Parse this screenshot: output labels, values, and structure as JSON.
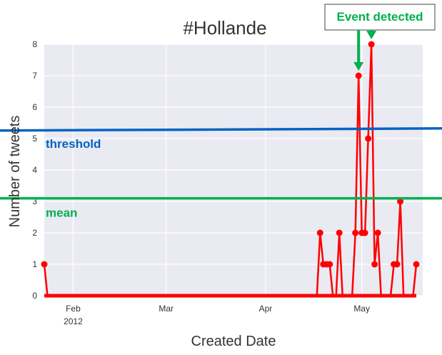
{
  "chart_data": {
    "type": "line",
    "title": "#Hollande",
    "xlabel": "Created Date",
    "ylabel": "Number of tweets",
    "ylim": [
      0,
      8
    ],
    "xlim": [
      "2012-01-23",
      "2012-05-20"
    ],
    "grid": true,
    "yticks": [
      0,
      1,
      2,
      3,
      4,
      5,
      6,
      7,
      8
    ],
    "xticks": [
      {
        "date": "2012-02-01",
        "label": "Feb",
        "sublabel": "2012"
      },
      {
        "date": "2012-03-01",
        "label": "Mar",
        "sublabel": ""
      },
      {
        "date": "2012-04-01",
        "label": "Apr",
        "sublabel": ""
      },
      {
        "date": "2012-05-01",
        "label": "May",
        "sublabel": ""
      }
    ],
    "series": [
      {
        "color": "#ff0000",
        "points": [
          {
            "x": "2012-01-23",
            "y": 1
          },
          {
            "x": "2012-01-24",
            "y": 0
          },
          {
            "x": "2012-04-17",
            "y": 0
          },
          {
            "x": "2012-04-18",
            "y": 2
          },
          {
            "x": "2012-04-19",
            "y": 1
          },
          {
            "x": "2012-04-20",
            "y": 1
          },
          {
            "x": "2012-04-21",
            "y": 1
          },
          {
            "x": "2012-04-22",
            "y": 0
          },
          {
            "x": "2012-04-23",
            "y": 0
          },
          {
            "x": "2012-04-24",
            "y": 2
          },
          {
            "x": "2012-04-25",
            "y": 0
          },
          {
            "x": "2012-04-26",
            "y": 0
          },
          {
            "x": "2012-04-28",
            "y": 0
          },
          {
            "x": "2012-04-29",
            "y": 2
          },
          {
            "x": "2012-04-30",
            "y": 7
          },
          {
            "x": "2012-05-01",
            "y": 2
          },
          {
            "x": "2012-05-02",
            "y": 2
          },
          {
            "x": "2012-05-03",
            "y": 5
          },
          {
            "x": "2012-05-04",
            "y": 8
          },
          {
            "x": "2012-05-05",
            "y": 1
          },
          {
            "x": "2012-05-06",
            "y": 2
          },
          {
            "x": "2012-05-07",
            "y": 0
          },
          {
            "x": "2012-05-08",
            "y": 0
          },
          {
            "x": "2012-05-10",
            "y": 0
          },
          {
            "x": "2012-05-11",
            "y": 1
          },
          {
            "x": "2012-05-12",
            "y": 1
          },
          {
            "x": "2012-05-13",
            "y": 3
          },
          {
            "x": "2012-05-14",
            "y": 0
          },
          {
            "x": "2012-05-15",
            "y": 0
          },
          {
            "x": "2012-05-16",
            "y": 0
          },
          {
            "x": "2012-05-17",
            "y": 0
          },
          {
            "x": "2012-05-18",
            "y": 1
          }
        ]
      }
    ],
    "reference_lines": [
      {
        "label": "threshold",
        "y": 5.3,
        "color": "#0563c1"
      },
      {
        "label": "mean",
        "y": 3.1,
        "color": "#00b050"
      }
    ],
    "annotation": {
      "text": "Event detected",
      "color": "#00b050",
      "targets": [
        {
          "x": "2012-04-30",
          "y": 7
        },
        {
          "x": "2012-05-04",
          "y": 8
        }
      ]
    }
  }
}
